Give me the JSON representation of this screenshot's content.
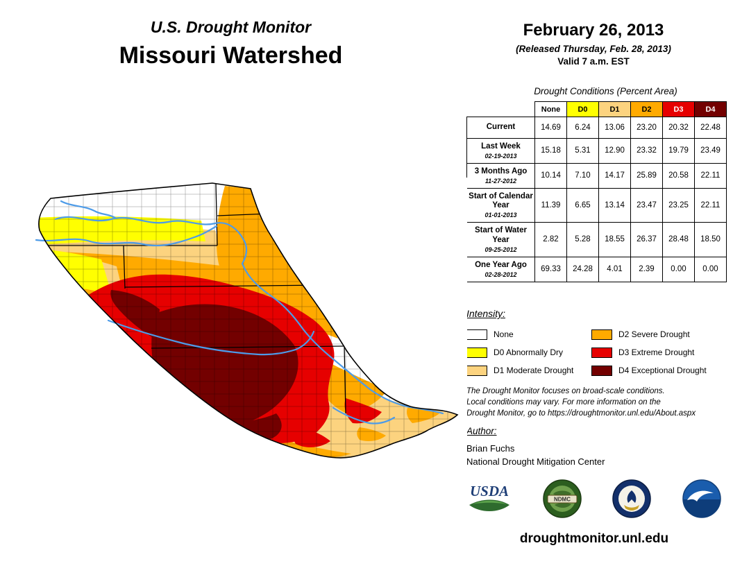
{
  "palette": {
    "none": "#FFFFFF",
    "d0": "#FFFF00",
    "d1": "#FCD37F",
    "d2": "#FFAA00",
    "d3": "#E60000",
    "d4": "#730000",
    "river": "#4D9BE8",
    "border": "#000000"
  },
  "header": {
    "title_line1": "U.S. Drought Monitor",
    "title_line2": "Missouri Watershed",
    "date": "February 26, 2013",
    "released": "(Released Thursday, Feb. 28, 2013)",
    "valid": "Valid 7 a.m. EST"
  },
  "table": {
    "title": "Drought Conditions (Percent Area)",
    "columns": [
      "None",
      "D0",
      "D1",
      "D2",
      "D3",
      "D4"
    ],
    "rows": [
      {
        "label": "Current",
        "sublabel": "",
        "values": [
          "14.69",
          "6.24",
          "13.06",
          "23.20",
          "20.32",
          "22.48"
        ]
      },
      {
        "label": "Last Week",
        "sublabel": "02-19-2013",
        "values": [
          "15.18",
          "5.31",
          "12.90",
          "23.32",
          "19.79",
          "23.49"
        ]
      },
      {
        "label": "3 Months Ago",
        "sublabel": "11-27-2012",
        "values": [
          "10.14",
          "7.10",
          "14.17",
          "25.89",
          "20.58",
          "22.11"
        ]
      },
      {
        "label": "Start of Calendar Year",
        "sublabel": "01-01-2013",
        "values": [
          "11.39",
          "6.65",
          "13.14",
          "23.47",
          "23.25",
          "22.11"
        ]
      },
      {
        "label": "Start of Water Year",
        "sublabel": "09-25-2012",
        "values": [
          "2.82",
          "5.28",
          "18.55",
          "26.37",
          "28.48",
          "18.50"
        ]
      },
      {
        "label": "One Year Ago",
        "sublabel": "02-28-2012",
        "values": [
          "69.33",
          "24.28",
          "4.01",
          "2.39",
          "0.00",
          "0.00"
        ]
      }
    ]
  },
  "legend": {
    "title": "Intensity:",
    "items": [
      {
        "label": "None",
        "color_key": "none"
      },
      {
        "label": "D0 Abnormally Dry",
        "color_key": "d0"
      },
      {
        "label": "D1 Moderate Drought",
        "color_key": "d1"
      },
      {
        "label": "D2 Severe Drought",
        "color_key": "d2"
      },
      {
        "label": "D3 Extreme Drought",
        "color_key": "d3"
      },
      {
        "label": "D4 Exceptional Drought",
        "color_key": "d4"
      }
    ]
  },
  "notes": {
    "lines": [
      "The Drought Monitor focuses on broad-scale conditions.",
      "Local conditions may vary. For more information on the",
      "Drought Monitor, go to https://droughtmonitor.unl.edu/About.aspx"
    ]
  },
  "author": {
    "heading": "Author:",
    "name": "Brian Fuchs",
    "org": "National Drought Mitigation Center"
  },
  "logos": {
    "usda_text": "USDA",
    "ndmc_text": "NDMC",
    "commerce_name": "U.S. Department of Commerce",
    "noaa_name": "NOAA"
  },
  "footer": {
    "url": "droughtmonitor.unl.edu"
  }
}
